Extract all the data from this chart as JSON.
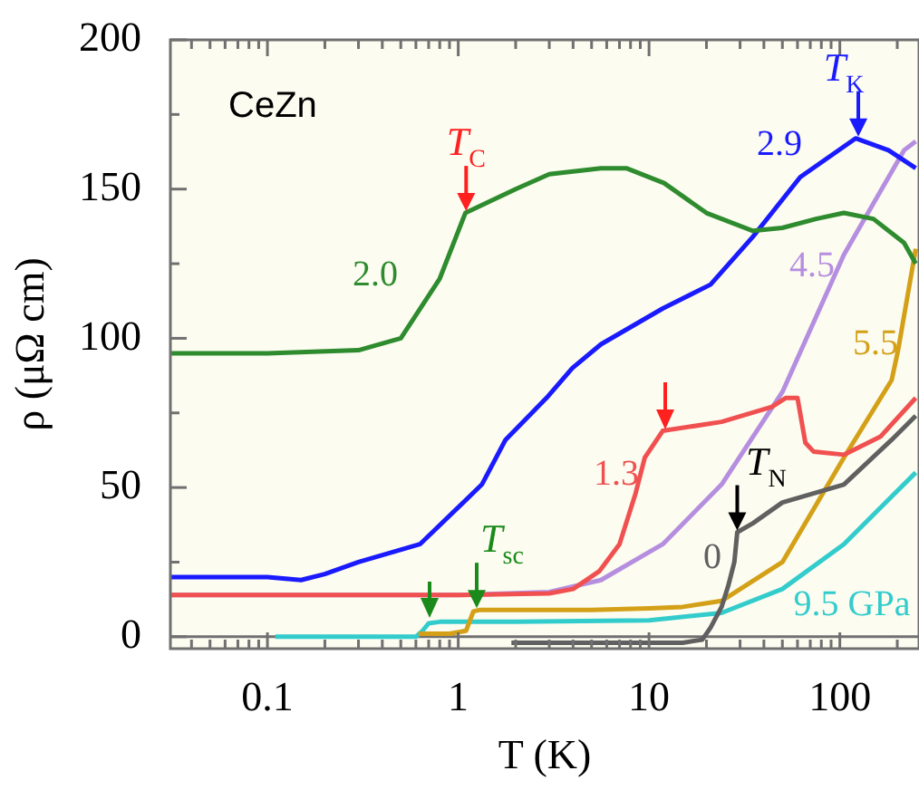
{
  "chart_data": {
    "type": "line",
    "xlabel": "T (K)",
    "ylabel": "ρ (μΩ cm)",
    "log": "x",
    "grid": false,
    "legend": false,
    "marker": "none",
    "line_style": "solid",
    "xlim": [
      0.031,
      260
    ],
    "ylim": [
      -4,
      200
    ],
    "xticks": [
      {
        "value": 0.04,
        "label": null
      },
      {
        "value": 0.05,
        "label": null
      },
      {
        "value": 0.06,
        "label": null
      },
      {
        "value": 0.07,
        "label": null
      },
      {
        "value": 0.08,
        "label": null
      },
      {
        "value": 0.09,
        "label": null
      },
      0.1,
      {
        "value": 0.2,
        "label": null
      },
      {
        "value": 0.3,
        "label": null
      },
      {
        "value": 0.4,
        "label": null
      },
      {
        "value": 0.5,
        "label": null
      },
      {
        "value": 0.6,
        "label": null
      },
      {
        "value": 0.7,
        "label": null
      },
      {
        "value": 0.8,
        "label": null
      },
      {
        "value": 0.9,
        "label": null
      },
      1,
      {
        "value": 2,
        "label": null
      },
      {
        "value": 3,
        "label": null
      },
      {
        "value": 4,
        "label": null
      },
      {
        "value": 5,
        "label": null
      },
      {
        "value": 6,
        "label": null
      },
      {
        "value": 7,
        "label": null
      },
      {
        "value": 8,
        "label": null
      },
      {
        "value": 9,
        "label": null
      },
      10,
      {
        "value": 20,
        "label": null
      },
      {
        "value": 30,
        "label": null
      },
      {
        "value": 40,
        "label": null
      },
      {
        "value": 50,
        "label": null
      },
      {
        "value": 60,
        "label": null
      },
      {
        "value": 70,
        "label": null
      },
      {
        "value": 80,
        "label": null
      },
      {
        "value": 90,
        "label": null
      },
      100,
      {
        "value": 200,
        "label": null
      }
    ],
    "yticks": [
      0,
      {
        "value": 25,
        "label": null
      },
      50,
      {
        "value": 75,
        "label": null
      },
      100,
      {
        "value": 125,
        "label": null
      },
      150,
      {
        "value": 175,
        "label": null
      },
      200
    ],
    "ref_lines": [
      {
        "axis": "y",
        "value": 0,
        "color": "#707070"
      }
    ],
    "series": [
      {
        "name": "0",
        "color": "#606060",
        "x": [
          1.9,
          5,
          10,
          15,
          19,
          21,
          24,
          26,
          28,
          29,
          35,
          50,
          105,
          187,
          250
        ],
        "values": [
          -2,
          -2,
          -2,
          -2,
          -1,
          3,
          10,
          17,
          25,
          35,
          38,
          45,
          51,
          66,
          74
        ]
      },
      {
        "name": "1.3",
        "color": "#f05050",
        "x": [
          0.031,
          0.1,
          1,
          3,
          4,
          5.5,
          7,
          8.5,
          9.5,
          11.8,
          24,
          44,
          52,
          60,
          66,
          73,
          105,
          163,
          250
        ],
        "values": [
          14,
          14,
          14,
          14.5,
          16,
          22,
          31,
          48,
          60,
          69,
          72,
          77,
          80,
          80,
          65,
          62,
          61,
          67,
          80
        ]
      },
      {
        "name": "2.0",
        "color": "#2e8b2e",
        "x": [
          0.031,
          0.1,
          0.3,
          0.5,
          0.8,
          1.09,
          2,
          3,
          5.6,
          7.6,
          12,
          20,
          35,
          50,
          75,
          105,
          150,
          217,
          250
        ],
        "values": [
          95,
          95,
          96,
          100,
          120,
          142,
          150,
          155,
          157,
          157,
          152,
          142,
          136,
          137,
          140,
          142,
          140,
          132,
          125
        ]
      },
      {
        "name": "2.9",
        "color": "#1a1aff",
        "x": [
          0.031,
          0.1,
          0.15,
          0.2,
          0.3,
          0.63,
          1.33,
          1.77,
          2.9,
          3.96,
          5.6,
          11.8,
          21,
          35,
          62,
          121,
          180,
          250
        ],
        "values": [
          20,
          20,
          19,
          21,
          25,
          31,
          51,
          66,
          80,
          90,
          98,
          110,
          118,
          134,
          154,
          167,
          163,
          157
        ]
      },
      {
        "name": "4.5",
        "color": "#b58ee0",
        "x": [
          0.031,
          0.1,
          1,
          3,
          5.6,
          11.8,
          24,
          50,
          105,
          217,
          250
        ],
        "values": [
          14,
          14,
          14,
          15,
          19,
          31,
          51,
          82,
          128,
          163,
          166
        ]
      },
      {
        "name": "5.5",
        "color": "#d4a017",
        "x": [
          0.62,
          0.9,
          1.1,
          1.2,
          1.3,
          5,
          10,
          15,
          24,
          50,
          105,
          187,
          202,
          250
        ],
        "values": [
          1,
          1,
          2,
          8.5,
          9,
          9,
          9.5,
          10,
          12,
          25,
          60,
          86,
          96,
          130
        ]
      },
      {
        "name": "9.5 GPa",
        "color": "#33cccc",
        "x": [
          0.11,
          0.3,
          0.6,
          0.65,
          0.7,
          0.8,
          2,
          10,
          24,
          50,
          105,
          187,
          250
        ],
        "values": [
          0,
          0,
          0,
          2,
          4.5,
          5,
          5,
          5.5,
          8,
          16,
          31,
          47,
          55
        ]
      }
    ],
    "annotations": [
      "CeZn",
      {
        "text": "T$_{C}$",
        "x": 1.1,
        "y": 142
      },
      {
        "text": "T$_{K}$",
        "x": 125,
        "y": 167
      },
      {
        "text": "T$_{N}$",
        "x": 29,
        "y": 35
      },
      {
        "text": "T$_{sc}$",
        "x": 1.25,
        "y": 9
      }
    ]
  }
}
